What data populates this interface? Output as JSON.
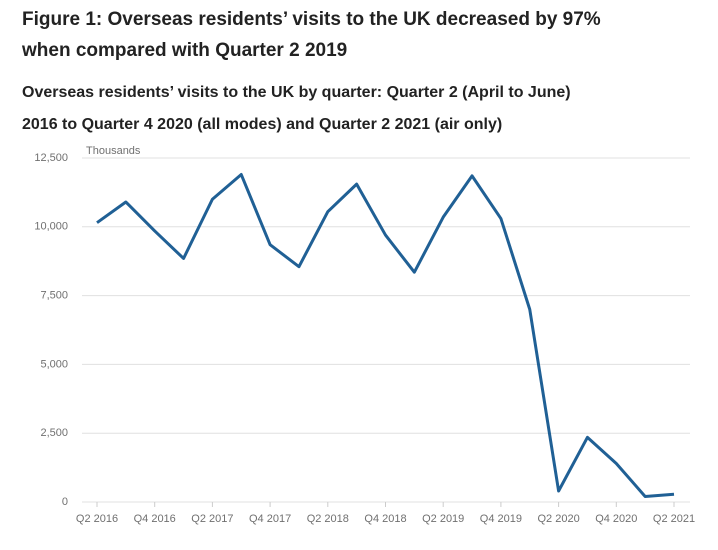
{
  "chart_data": {
    "type": "line",
    "title": [
      "Figure 1: Overseas residents’ visits to the UK decreased by 97%",
      "when compared with Quarter 2 2019"
    ],
    "subtitle": [
      "Overseas residents’ visits to the UK by quarter: Quarter 2 (April to June)",
      "2016 to Quarter 4 2020 (all modes) and Quarter 2 2021 (air only)"
    ],
    "y_label": "Thousands",
    "categories": [
      "Q2 2016",
      null,
      "Q4 2016",
      null,
      "Q2 2017",
      null,
      "Q4 2017",
      null,
      "Q2 2018",
      null,
      "Q4 2018",
      null,
      "Q2 2019",
      null,
      "Q4 2019",
      null,
      "Q2 2020",
      null,
      "Q4 2020",
      null,
      "Q2 2021"
    ],
    "series": [
      {
        "name": "Overseas residents’ visits",
        "color": "#206095",
        "values": [
          10150,
          10900,
          9850,
          8850,
          11000,
          11900,
          9350,
          8550,
          10550,
          11550,
          9700,
          8350,
          10350,
          11850,
          10300,
          7000,
          400,
          2350,
          1400,
          200,
          280
        ]
      }
    ],
    "ylim": [
      0,
      12500
    ],
    "yticks": [
      0,
      {
        "value": 2500,
        "label": "2,500"
      },
      {
        "value": 5000,
        "label": "5,000"
      },
      {
        "value": 7500,
        "label": "7,500"
      },
      {
        "value": 10000,
        "label": "10,000"
      },
      {
        "value": 12500,
        "label": "12,500"
      }
    ],
    "grid": true
  }
}
